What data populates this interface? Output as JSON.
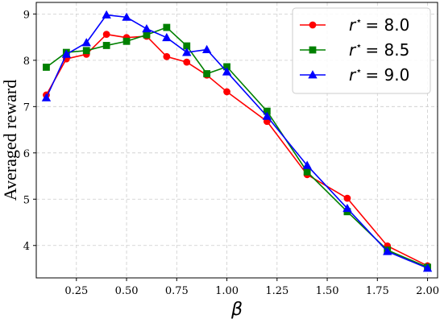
{
  "chart_data": {
    "type": "line",
    "xlabel": "β",
    "ylabel": "Averaged reward",
    "xlim": [
      0.05,
      2.05
    ],
    "ylim": [
      3.3,
      9.25
    ],
    "xticks": [
      "0.25",
      "0.50",
      "0.75",
      "1.00",
      "1.25",
      "1.50",
      "1.75",
      "2.00"
    ],
    "yticks": [
      "4",
      "5",
      "6",
      "7",
      "8",
      "9"
    ],
    "grid": true,
    "legend_position": "top-right",
    "series": [
      {
        "name": "r* = 8.0",
        "legend_symbol": "r",
        "legend_sup": "⋆",
        "legend_value": "= 8.0",
        "color": "#ff0000",
        "marker": "circle",
        "x": [
          0.1,
          0.2,
          0.3,
          0.4,
          0.5,
          0.6,
          0.7,
          0.8,
          0.9,
          1.0,
          1.2,
          1.4,
          1.6,
          1.8,
          2.0
        ],
        "y": [
          7.25,
          8.03,
          8.13,
          8.56,
          8.49,
          8.52,
          8.08,
          7.96,
          7.68,
          7.32,
          6.68,
          5.53,
          5.02,
          3.99,
          3.56
        ]
      },
      {
        "name": "r* = 8.5",
        "legend_symbol": "r",
        "legend_sup": "⋆",
        "legend_value": "= 8.5",
        "color": "#008000",
        "marker": "square",
        "x": [
          0.1,
          0.2,
          0.3,
          0.4,
          0.5,
          0.6,
          0.7,
          0.8,
          0.9,
          1.0,
          1.2,
          1.4,
          1.6,
          1.8,
          2.0
        ],
        "y": [
          7.85,
          8.17,
          8.21,
          8.32,
          8.41,
          8.55,
          8.71,
          8.31,
          7.71,
          7.86,
          6.9,
          5.59,
          4.73,
          3.9,
          3.53
        ]
      },
      {
        "name": "r* = 9.0",
        "legend_symbol": "r",
        "legend_sup": "⋆",
        "legend_value": "= 9.0",
        "color": "#0000ff",
        "marker": "triangle",
        "x": [
          0.1,
          0.2,
          0.3,
          0.4,
          0.5,
          0.6,
          0.7,
          0.8,
          0.9,
          1.0,
          1.2,
          1.4,
          1.6,
          1.8,
          2.0
        ],
        "y": [
          7.19,
          8.13,
          8.38,
          8.98,
          8.93,
          8.68,
          8.49,
          8.17,
          8.23,
          7.75,
          6.79,
          5.73,
          4.8,
          3.87,
          3.51
        ]
      }
    ]
  }
}
